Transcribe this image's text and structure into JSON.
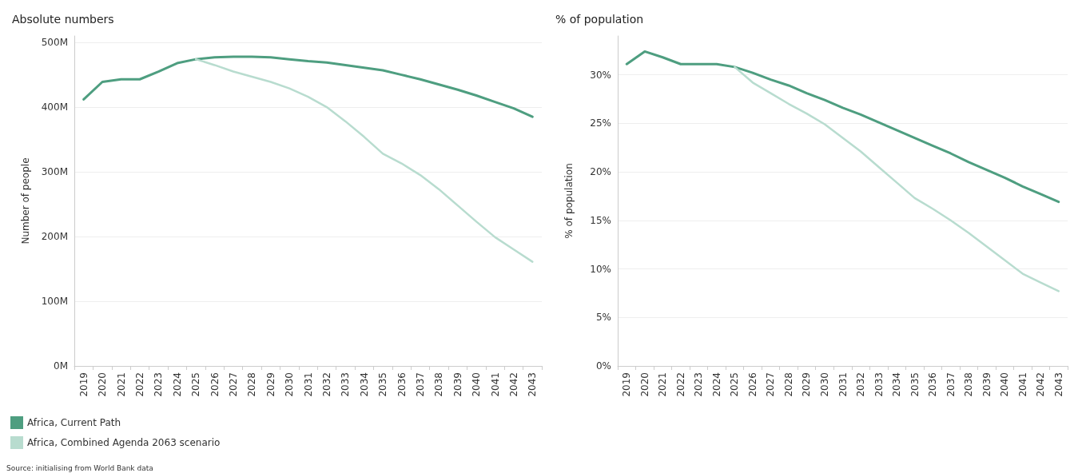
{
  "chart_data": [
    {
      "type": "line",
      "title": "Absolute numbers",
      "ylabel": "Number of people",
      "categories": [
        "2019",
        "2020",
        "2021",
        "2022",
        "2023",
        "2024",
        "2025",
        "2026",
        "2027",
        "2028",
        "2029",
        "2030",
        "2031",
        "2032",
        "2033",
        "2034",
        "2035",
        "2036",
        "2037",
        "2038",
        "2039",
        "2040",
        "2041",
        "2042",
        "2043"
      ],
      "series": [
        {
          "name": "Africa, Current Path",
          "color": "#4e9e80",
          "values": [
            412,
            439,
            443,
            443,
            455,
            468,
            474,
            477,
            478,
            478,
            477,
            474,
            471,
            469,
            465,
            461,
            457,
            450,
            443,
            435,
            427,
            418,
            408,
            398,
            385
          ]
        },
        {
          "name": "Africa, Combined Agenda 2063 scenario",
          "color": "#b8dccf",
          "values": [
            null,
            null,
            null,
            null,
            null,
            null,
            474,
            465,
            455,
            447,
            439,
            429,
            416,
            400,
            378,
            354,
            328,
            313,
            295,
            273,
            248,
            223,
            199,
            180,
            161
          ]
        }
      ],
      "ylim": [
        0,
        510
      ],
      "yticks": [
        {
          "value": 0,
          "label": "0M"
        },
        {
          "value": 100,
          "label": "100M"
        },
        {
          "value": 200,
          "label": "200M"
        },
        {
          "value": 300,
          "label": "300M"
        },
        {
          "value": 400,
          "label": "400M"
        },
        {
          "value": 500,
          "label": "500M"
        }
      ],
      "grid": "y",
      "legend": "bottom",
      "marker": "none",
      "line_style": "solid",
      "annotations": [
        "Source: initialising from World Bank data"
      ]
    },
    {
      "type": "line",
      "title": "% of population",
      "ylabel": "% of population",
      "categories": [
        "2019",
        "2020",
        "2021",
        "2022",
        "2023",
        "2024",
        "2025",
        "2026",
        "2027",
        "2028",
        "2029",
        "2030",
        "2031",
        "2032",
        "2033",
        "2034",
        "2035",
        "2036",
        "2037",
        "2038",
        "2039",
        "2040",
        "2041",
        "2042",
        "2043"
      ],
      "series": [
        {
          "color": "#4e9e80",
          "values": [
            31.1,
            32.4,
            31.8,
            31.1,
            31.1,
            31.1,
            30.8,
            30.2,
            29.5,
            28.9,
            28.1,
            27.4,
            26.6,
            25.9,
            25.1,
            24.3,
            23.5,
            22.7,
            21.9,
            21.0,
            20.2,
            19.4,
            18.5,
            17.7,
            16.9
          ]
        },
        {
          "color": "#b8dccf",
          "values": [
            null,
            null,
            null,
            null,
            null,
            null,
            30.8,
            29.2,
            28.1,
            27.0,
            26.0,
            24.9,
            23.5,
            22.1,
            20.5,
            18.9,
            17.3,
            16.2,
            15.0,
            13.7,
            12.3,
            10.9,
            9.5,
            8.6,
            7.7
          ]
        }
      ],
      "ylim": [
        0,
        34
      ],
      "yticks": [
        {
          "value": 0,
          "label": "0%"
        },
        {
          "value": 5,
          "label": "5%"
        },
        {
          "value": 10,
          "label": "10%"
        },
        {
          "value": 15,
          "label": "15%"
        },
        {
          "value": 20,
          "label": "20%"
        },
        {
          "value": 25,
          "label": "25%"
        },
        {
          "value": 30,
          "label": "30%"
        }
      ],
      "grid": "y",
      "legend": false,
      "marker": "none",
      "line_style": "solid"
    }
  ]
}
